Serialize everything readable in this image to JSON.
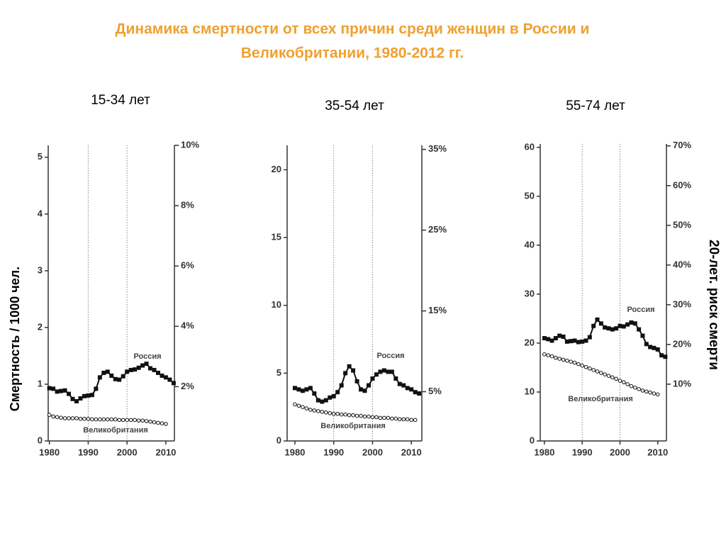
{
  "title": "Динамика смертности от всех причин среди женщин в России и Великобритании, 1980-2012 гг.",
  "ylabel": "Смертность / 1000 чел.",
  "y2label": "20-лет. риск смерти",
  "chart_data": [
    {
      "type": "line",
      "subtitle": "15-34 лет",
      "x": [
        1980,
        1981,
        1982,
        1983,
        1984,
        1985,
        1986,
        1987,
        1988,
        1989,
        1990,
        1991,
        1992,
        1993,
        1994,
        1995,
        1996,
        1997,
        1998,
        1999,
        2000,
        2001,
        2002,
        2003,
        2004,
        2005,
        2006,
        2007,
        2008,
        2009,
        2010,
        2011,
        2012
      ],
      "series": [
        {
          "name": "Россия",
          "color": "#111111",
          "values": [
            0.93,
            0.92,
            0.87,
            0.88,
            0.89,
            0.83,
            0.74,
            0.7,
            0.75,
            0.79,
            0.8,
            0.81,
            0.92,
            1.12,
            1.2,
            1.22,
            1.15,
            1.09,
            1.08,
            1.14,
            1.22,
            1.25,
            1.26,
            1.29,
            1.33,
            1.36,
            1.28,
            1.25,
            1.2,
            1.15,
            1.12,
            1.08,
            1.02
          ]
        },
        {
          "name": "Великобритания",
          "color": "#111111",
          "values": [
            0.46,
            0.43,
            0.42,
            0.41,
            0.4,
            0.4,
            0.4,
            0.4,
            0.39,
            0.39,
            0.39,
            0.38,
            0.38,
            0.38,
            0.38,
            0.38,
            0.38,
            0.38,
            0.37,
            0.37,
            0.37,
            0.37,
            0.37,
            0.36,
            0.36,
            0.35,
            0.34,
            0.33,
            0.32,
            0.31,
            0.3,
            null,
            null
          ]
        }
      ],
      "xlim": [
        1979.7,
        2012.2
      ],
      "xticks": [
        1980,
        1990,
        2000,
        2010
      ],
      "ylim": [
        0,
        5.21
      ],
      "yticks": [
        0,
        1,
        2,
        3,
        4,
        5
      ],
      "y2lim": [
        0.2,
        10.0
      ],
      "y2ticks": [
        {
          "value": 2,
          "label": "2%"
        },
        {
          "value": 4,
          "label": "4%"
        },
        {
          "value": 6,
          "label": "6%"
        },
        {
          "value": 8,
          "label": "8%"
        },
        {
          "value": 10,
          "label": "10%"
        }
      ],
      "grid": true
    },
    {
      "type": "line",
      "subtitle": "35-54 лет",
      "x": [
        1980,
        1981,
        1982,
        1983,
        1984,
        1985,
        1986,
        1987,
        1988,
        1989,
        1990,
        1991,
        1992,
        1993,
        1994,
        1995,
        1996,
        1997,
        1998,
        1999,
        2000,
        2001,
        2002,
        2003,
        2004,
        2005,
        2006,
        2007,
        2008,
        2009,
        2010,
        2011,
        2012
      ],
      "series": [
        {
          "name": "Россия",
          "color": "#111111",
          "values": [
            3.9,
            3.8,
            3.7,
            3.8,
            3.9,
            3.5,
            3.0,
            2.9,
            3.0,
            3.2,
            3.3,
            3.6,
            4.1,
            5.0,
            5.5,
            5.2,
            4.4,
            3.8,
            3.7,
            4.1,
            4.6,
            4.9,
            5.1,
            5.2,
            5.1,
            5.1,
            4.6,
            4.2,
            4.1,
            3.9,
            3.8,
            3.6,
            3.5
          ]
        },
        {
          "name": "Великобритания",
          "color": "#111111",
          "values": [
            2.7,
            2.6,
            2.5,
            2.4,
            2.3,
            2.25,
            2.2,
            2.15,
            2.1,
            2.05,
            2.0,
            2.0,
            1.95,
            1.95,
            1.9,
            1.9,
            1.85,
            1.85,
            1.8,
            1.8,
            1.75,
            1.75,
            1.7,
            1.7,
            1.7,
            1.65,
            1.65,
            1.6,
            1.6,
            1.6,
            1.55,
            1.55,
            null
          ]
        }
      ],
      "xlim": [
        1978.0,
        2012.7
      ],
      "xticks": [
        1980,
        1990,
        2000,
        2010
      ],
      "ylim": [
        0,
        21.8
      ],
      "yticks": [
        0,
        5,
        10,
        15,
        20
      ],
      "y2lim": [
        -1.1,
        35.5
      ],
      "y2ticks": [
        {
          "value": 5,
          "label": "5%"
        },
        {
          "value": 15,
          "label": "15%"
        },
        {
          "value": 25,
          "label": "25%"
        },
        {
          "value": 35,
          "label": "35%"
        }
      ],
      "grid": true
    },
    {
      "type": "line",
      "subtitle": "55-74 лет",
      "x": [
        1980,
        1981,
        1982,
        1983,
        1984,
        1985,
        1986,
        1987,
        1988,
        1989,
        1990,
        1991,
        1992,
        1993,
        1994,
        1995,
        1996,
        1997,
        1998,
        1999,
        2000,
        2001,
        2002,
        2003,
        2004,
        2005,
        2006,
        2007,
        2008,
        2009,
        2010,
        2011,
        2012
      ],
      "series": [
        {
          "name": "Россия",
          "color": "#111111",
          "values": [
            21,
            20.8,
            20.5,
            21,
            21.5,
            21.3,
            20.3,
            20.4,
            20.5,
            20.2,
            20.3,
            20.5,
            21.2,
            23.5,
            24.8,
            24,
            23.2,
            23,
            22.8,
            23,
            23.5,
            23.4,
            23.8,
            24.2,
            24,
            22.8,
            21.5,
            19.8,
            19.2,
            19,
            18.7,
            17.5,
            17.2
          ]
        },
        {
          "name": "Великобритания",
          "color": "#111111",
          "values": [
            17.7,
            17.5,
            17.3,
            17.0,
            16.8,
            16.6,
            16.4,
            16.2,
            16.0,
            15.7,
            15.4,
            15.1,
            14.8,
            14.5,
            14.2,
            13.9,
            13.6,
            13.3,
            13.0,
            12.7,
            12.3,
            12.0,
            11.6,
            11.2,
            10.9,
            10.6,
            10.3,
            10.1,
            9.9,
            9.7,
            9.5,
            null,
            null
          ]
        }
      ],
      "xlim": [
        1978.9,
        2012.3
      ],
      "xticks": [
        1980,
        1990,
        2000,
        2010
      ],
      "ylim": [
        0,
        60.7
      ],
      "yticks": [
        0,
        10,
        20,
        30,
        40,
        50,
        60
      ],
      "y2lim": [
        -4.3,
        70.5
      ],
      "y2ticks": [
        {
          "value": 10,
          "label": "10%"
        },
        {
          "value": 20,
          "label": "20%"
        },
        {
          "value": 30,
          "label": "30%"
        },
        {
          "value": 40,
          "label": "40%"
        },
        {
          "value": 50,
          "label": "50%"
        },
        {
          "value": 60,
          "label": "60%"
        },
        {
          "value": 70,
          "label": "70%"
        }
      ],
      "grid": true
    }
  ]
}
